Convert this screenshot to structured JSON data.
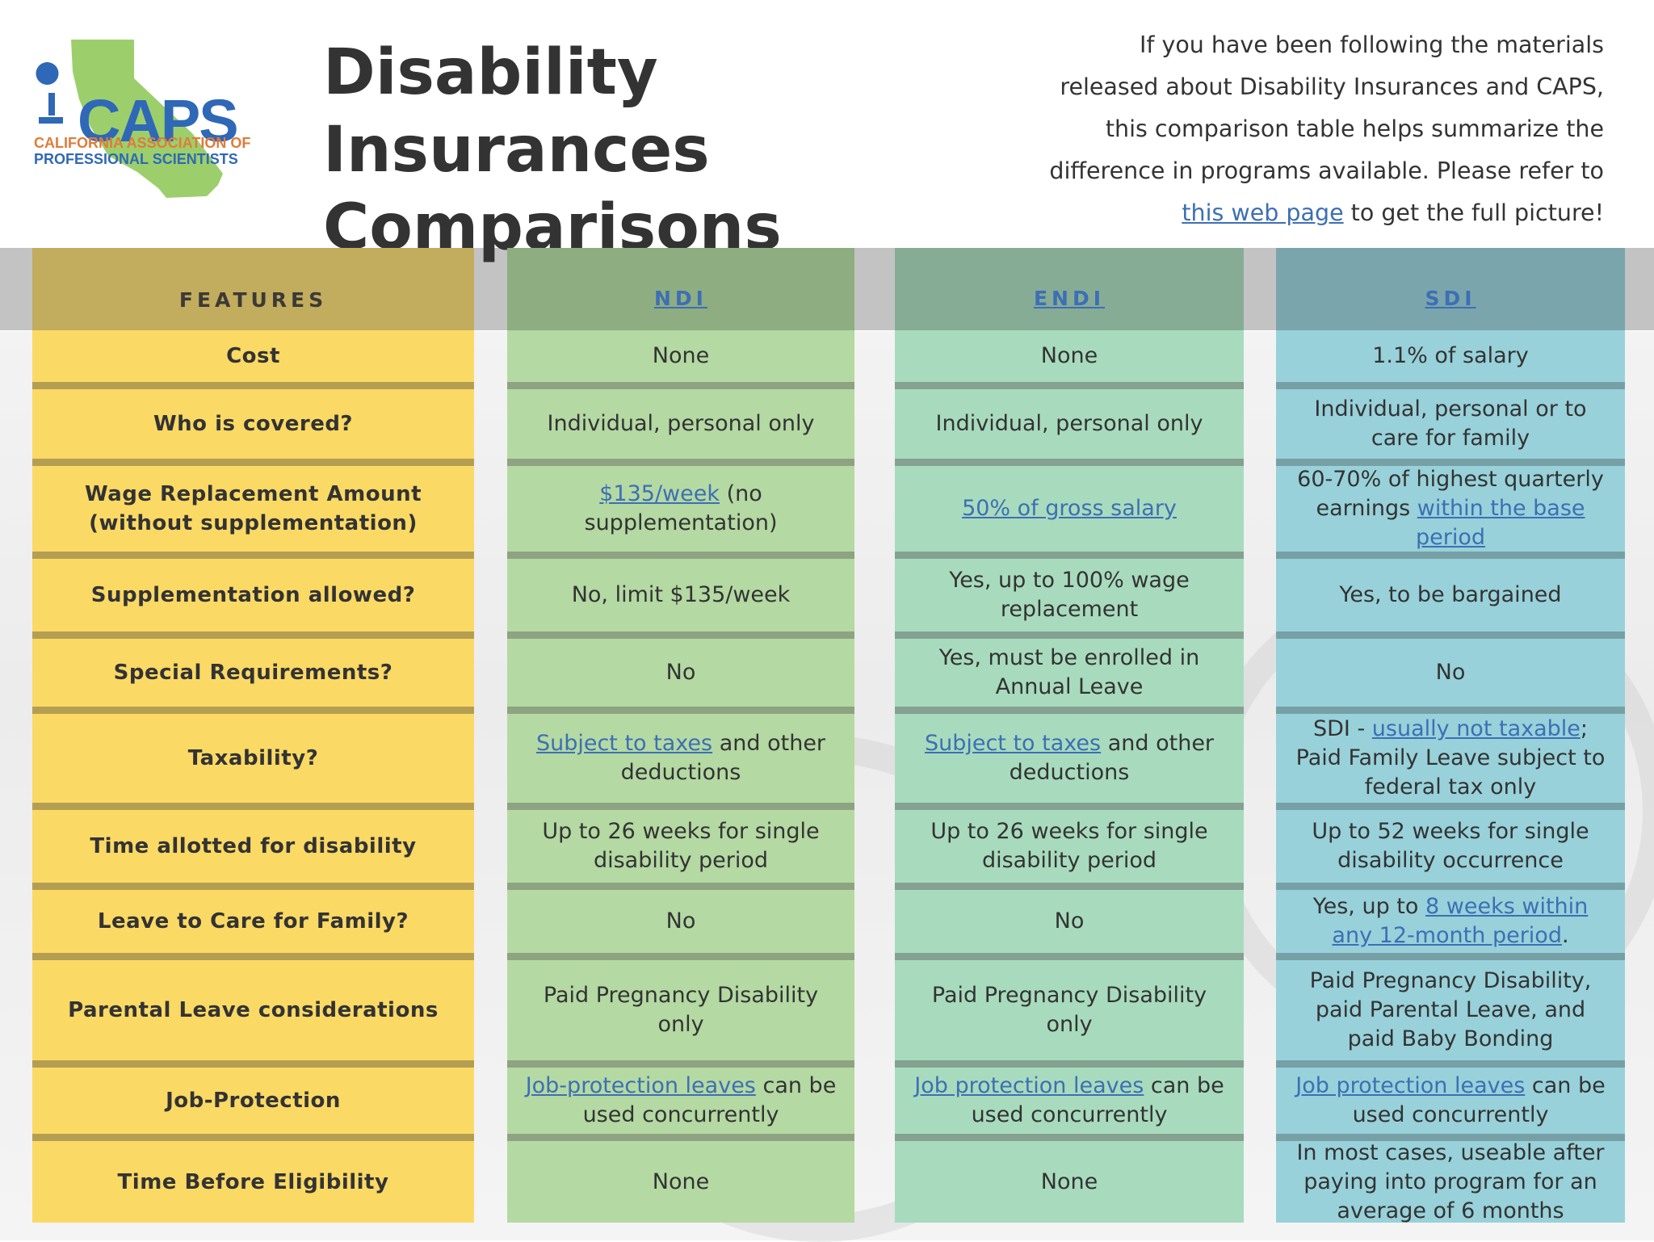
{
  "header": {
    "logo_word": "CAPS",
    "logo_line1": "CALIFORNIA ASSOCIATION OF",
    "logo_line2": "PROFESSIONAL SCIENTISTS",
    "title_line1": "Disability Insurances",
    "title_line2": "Comparisons",
    "intro_before": "If you have been following the materials released about Disability Insurances and CAPS, this comparison table helps summarize the difference in programs available. Please refer to",
    "intro_link": "this web page",
    "intro_after": "to get the full picture!"
  },
  "columns": {
    "features": "FEATURES",
    "ndi": "NDI",
    "endi": "ENDI",
    "sdi": "SDI"
  },
  "rows": {
    "cost": {
      "feature": "Cost",
      "ndi": "None",
      "endi": "None",
      "sdi": "1.1% of salary"
    },
    "covered": {
      "feature": "Who is covered?",
      "ndi": "Individual, personal only",
      "endi": "Individual, personal only",
      "sdi": "Individual, personal or to care for family"
    },
    "wage": {
      "feature": "Wage Replacement Amount (without supplementation)",
      "ndi_link": "$135/week",
      "ndi_rest": "(no supplementation)",
      "endi_link": "50% of gross salary",
      "sdi_before": "60-70% of highest quarterly earnings",
      "sdi_link": "within the base period"
    },
    "supplementation": {
      "feature": "Supplementation allowed?",
      "ndi": "No, limit $135/week",
      "endi": "Yes, up to 100% wage replacement",
      "sdi": "Yes, to be bargained"
    },
    "special": {
      "feature": "Special Requirements?",
      "ndi": "No",
      "endi": "Yes, must be enrolled in Annual Leave",
      "sdi": "No"
    },
    "taxability": {
      "feature": "Taxability?",
      "ndi_link": "Subject to taxes",
      "ndi_rest": "and other deductions",
      "endi_link": "Subject to taxes",
      "endi_rest": "and other deductions",
      "sdi_before": "SDI -",
      "sdi_link": "usually not taxable",
      "sdi_after": "; Paid Family Leave subject to federal tax only"
    },
    "time_allotted": {
      "feature": "Time allotted for disability",
      "ndi": "Up to 26 weeks for single disability period",
      "endi": "Up to 26 weeks for single disability period",
      "sdi": "Up to 52 weeks for single disability occurrence"
    },
    "family": {
      "feature": "Leave to Care for Family?",
      "ndi": "No",
      "endi": "No",
      "sdi_before": "Yes, up to",
      "sdi_link": "8 weeks within any 12-month period",
      "sdi_after": "."
    },
    "parental": {
      "feature": "Parental Leave considerations",
      "ndi": "Paid Pregnancy Disability only",
      "endi": "Paid Pregnancy Disability only",
      "sdi": "Paid Pregnancy Disability, paid Parental Leave, and paid Baby Bonding"
    },
    "job": {
      "feature": "Job-Protection",
      "ndi_link": "Job-protection leaves",
      "ndi_rest": "can be used concurrently",
      "endi_link": "Job protection leaves",
      "endi_rest": "can be used concurrently",
      "sdi_link": "Job protection leaves",
      "sdi_rest": "can be used concurrently"
    },
    "eligibility": {
      "feature": "Time Before Eligibility",
      "ndi": "None",
      "endi": "None",
      "sdi": "In most cases, useable after paying into program for an average of 6 months"
    }
  },
  "colors": {
    "features": "#fbd965",
    "ndi": "#b4d9a3",
    "endi": "#a8dbbd",
    "sdi": "#98d1da",
    "link": "#3d6fb4",
    "logo_state": "#9ccf6b"
  }
}
